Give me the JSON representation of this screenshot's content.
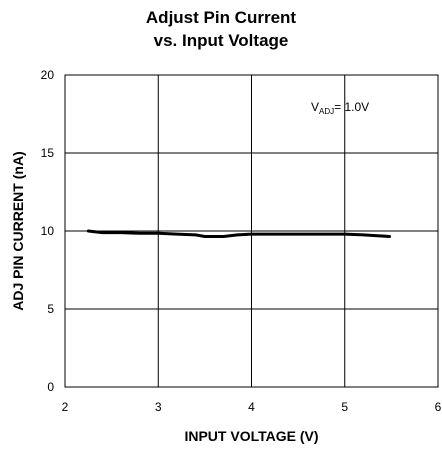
{
  "chart_data": {
    "type": "line",
    "title_lines": [
      "Adjust Pin Current",
      "vs. Input Voltage"
    ],
    "xlabel": "INPUT VOLTAGE (V)",
    "ylabel": "ADJ PIN CURRENT (nA)",
    "xlim": [
      2,
      6
    ],
    "ylim": [
      0,
      20
    ],
    "xticks": [
      "2",
      "3",
      "4",
      "5",
      "6"
    ],
    "yticks": [
      "0",
      "5",
      "10",
      "15",
      "20"
    ],
    "grid": true,
    "annotation": {
      "main": "V",
      "sub": "ADJ",
      "rest": "= 1.0V"
    },
    "series": [
      {
        "color": "#000000",
        "x": [
          2.25,
          2.4,
          2.6,
          2.8,
          3.0,
          3.2,
          3.4,
          3.5,
          3.7,
          3.85,
          4.0,
          4.5,
          5.0,
          5.2,
          5.35,
          5.48
        ],
        "y": [
          10.0,
          9.9,
          9.9,
          9.85,
          9.85,
          9.8,
          9.75,
          9.65,
          9.65,
          9.75,
          9.8,
          9.8,
          9.8,
          9.75,
          9.7,
          9.65
        ]
      }
    ]
  }
}
